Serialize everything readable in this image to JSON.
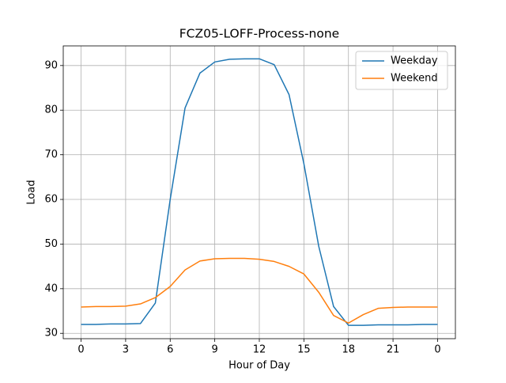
{
  "chart_data": {
    "type": "line",
    "title": "FCZ05-LOFF-Process-none",
    "x_label": "Hour of Day",
    "y_label": "Load",
    "x": [
      0,
      1,
      2,
      3,
      4,
      5,
      6,
      7,
      8,
      9,
      10,
      11,
      12,
      13,
      14,
      15,
      16,
      17,
      18,
      19,
      20,
      21,
      22,
      23,
      24
    ],
    "series": [
      {
        "name": "Weekday",
        "color": "#1f77b4",
        "values": [
          32.0,
          32.0,
          32.1,
          32.1,
          32.2,
          36.8,
          60.0,
          80.5,
          88.3,
          90.8,
          91.4,
          91.5,
          91.5,
          90.2,
          83.5,
          68.0,
          49.5,
          36.0,
          31.8,
          31.8,
          31.9,
          31.9,
          31.9,
          32.0,
          32.0
        ]
      },
      {
        "name": "Weekend",
        "color": "#ff7f0e",
        "values": [
          35.9,
          36.0,
          36.0,
          36.1,
          36.6,
          38.0,
          40.5,
          44.2,
          46.2,
          46.7,
          46.8,
          46.8,
          46.6,
          46.1,
          45.0,
          43.3,
          39.2,
          34.0,
          32.3,
          34.2,
          35.6,
          35.8,
          35.9,
          35.9,
          35.9
        ]
      }
    ],
    "xlim": [
      -1.2,
      25.2
    ],
    "ylim": [
      28.8,
      94.4
    ],
    "xticks": [
      0,
      3,
      6,
      9,
      12,
      15,
      18,
      21,
      {
        "value": 24,
        "label": "0"
      }
    ],
    "yticks": [
      30,
      40,
      50,
      60,
      70,
      80,
      90
    ],
    "grid": true,
    "legend": "upper right"
  }
}
